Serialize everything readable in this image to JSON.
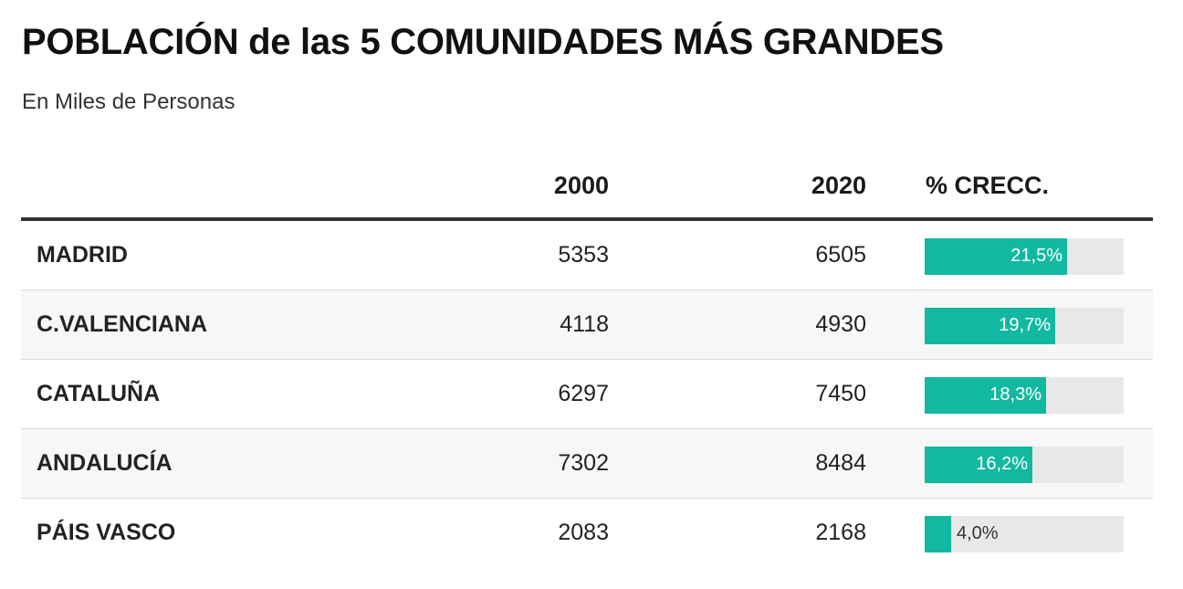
{
  "chart_data": {
    "type": "table",
    "title": "POBLACIÓN de las 5 COMUNIDADES MÁS GRANDES",
    "subtitle": "En Miles de Personas",
    "columns": [
      "",
      "2000",
      "2020",
      "% CRECC."
    ],
    "rows": [
      {
        "name": "MADRID",
        "v2000": 5353,
        "v2020": 6505,
        "pct": 21.5,
        "pct_label": "21,5%"
      },
      {
        "name": "C.VALENCIANA",
        "v2000": 4118,
        "v2020": 4930,
        "pct": 19.7,
        "pct_label": "19,7%"
      },
      {
        "name": "CATALUÑA",
        "v2000": 6297,
        "v2020": 7450,
        "pct": 18.3,
        "pct_label": "18,3%"
      },
      {
        "name": "ANDALUCÍA",
        "v2000": 7302,
        "v2020": 8484,
        "pct": 16.2,
        "pct_label": "16,2%"
      },
      {
        "name": "PÁIS VASCO",
        "v2000": 2083,
        "v2020": 2168,
        "pct": 4.0,
        "pct_label": "4,0%"
      }
    ],
    "bar_max": 30,
    "colors": {
      "bar": "#12b9a0",
      "track": "#e8e8e8",
      "rule": "#333333"
    }
  }
}
